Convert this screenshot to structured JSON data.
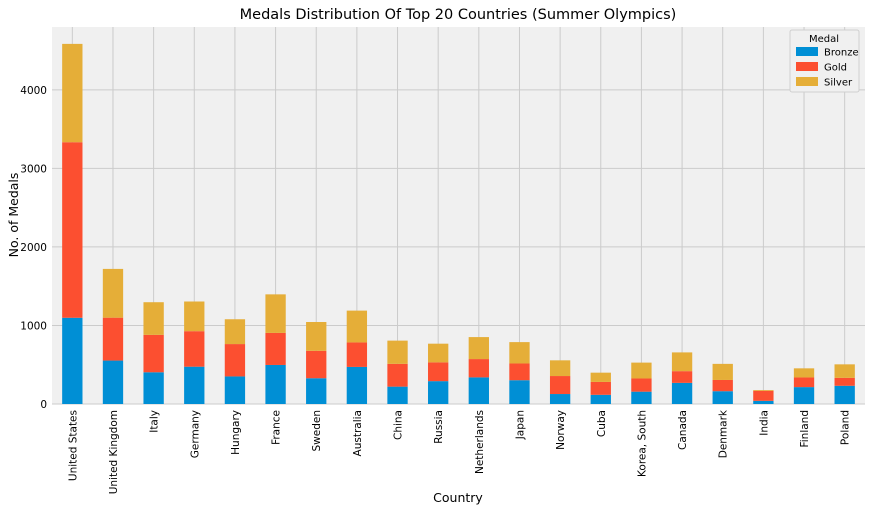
{
  "chart_data": {
    "type": "bar",
    "stacked": true,
    "title": "Medals Distribution Of Top 20 Countries (Summer Olympics)",
    "xlabel": "Country",
    "ylabel": "No. of Medals",
    "ylim": [
      0,
      4800
    ],
    "yticks": [
      0,
      1000,
      2000,
      3000,
      4000
    ],
    "grid": true,
    "legend_title": "Medal",
    "legend_position": "top-right",
    "categories": [
      "United States",
      "United Kingdom",
      "Italy",
      "Germany",
      "Hungary",
      "France",
      "Sweden",
      "Australia",
      "China",
      "Russia",
      "Netherlands",
      "Japan",
      "Norway",
      "Cuba",
      "Korea, South",
      "Canada",
      "Denmark",
      "India",
      "Finland",
      "Poland"
    ],
    "series": [
      {
        "name": "Bronze",
        "color": "#008fd5",
        "values": [
          1098,
          553,
          404,
          475,
          351,
          497,
          328,
          472,
          221,
          291,
          339,
          303,
          127,
          117,
          157,
          269,
          163,
          40,
          215,
          232
        ]
      },
      {
        "name": "Gold",
        "color": "#fc4f30",
        "values": [
          2235,
          546,
          476,
          452,
          412,
          408,
          349,
          312,
          290,
          239,
          233,
          213,
          229,
          164,
          168,
          149,
          143,
          128,
          123,
          101
        ]
      },
      {
        "name": "Silver",
        "color": "#e5ae38",
        "values": [
          1252,
          621,
          416,
          378,
          316,
          491,
          367,
          405,
          296,
          238,
          280,
          272,
          200,
          118,
          202,
          239,
          205,
          10,
          116,
          172
        ]
      }
    ]
  }
}
